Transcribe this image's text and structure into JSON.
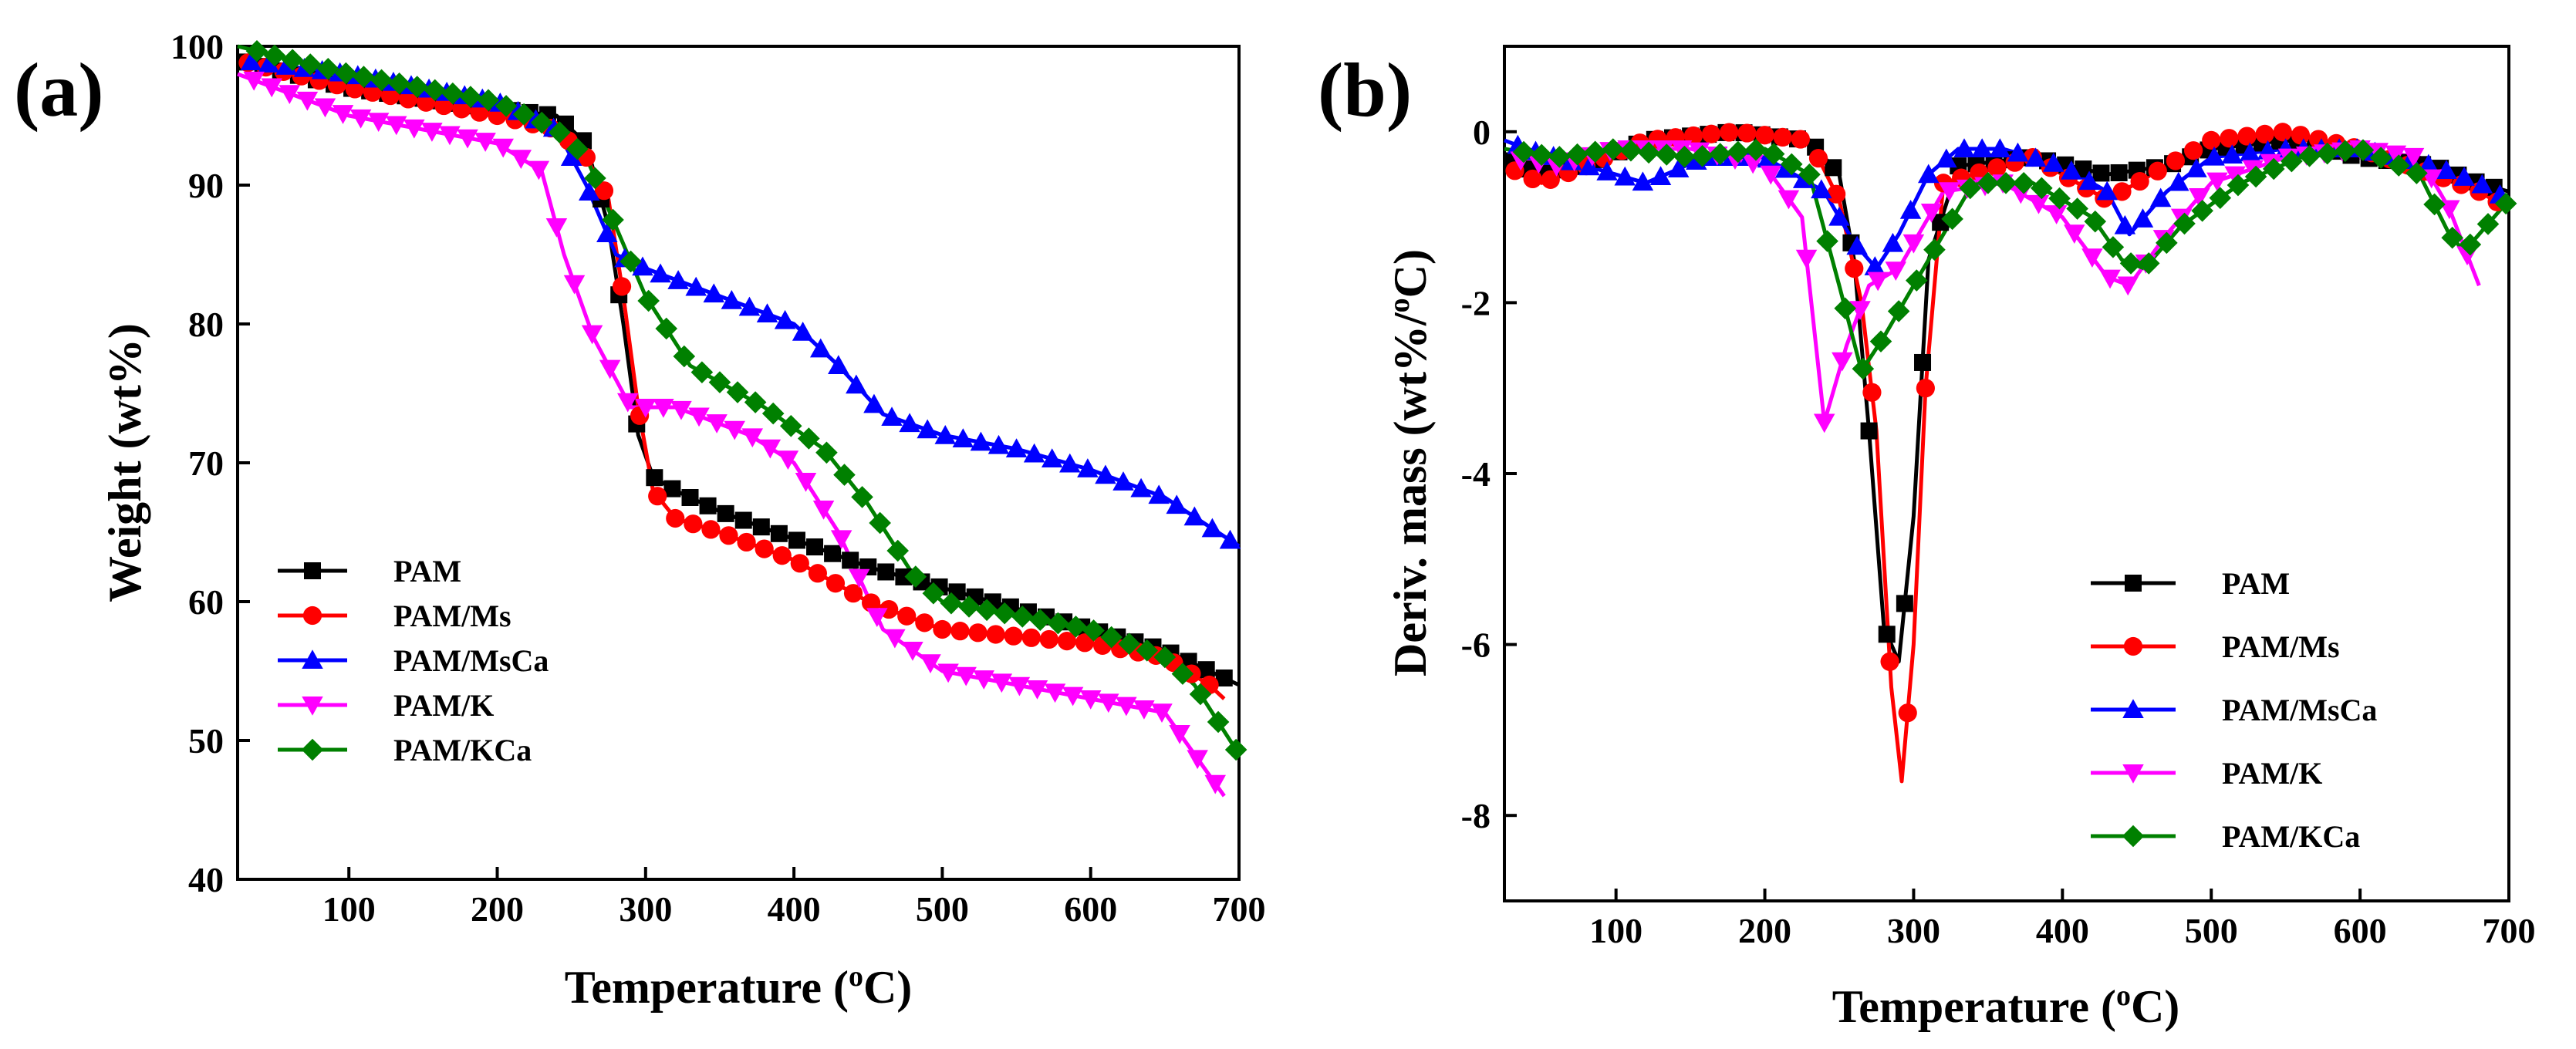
{
  "chart_data": [
    {
      "type": "line",
      "panel_label": "(a)",
      "title": "",
      "xlabel": "Temperature (",
      "xlabel_superscript": "o",
      "xlabel_unit": "C)",
      "ylabel": "Weight (wt%)",
      "xlim": [
        25,
        700
      ],
      "ylim": [
        40,
        100
      ],
      "xticks": [
        100,
        200,
        300,
        400,
        500,
        600,
        700
      ],
      "yticks": [
        40,
        50,
        60,
        70,
        80,
        90,
        100
      ],
      "legend_position": "bottom-left",
      "series": [
        {
          "name": "PAM",
          "color": "#000000",
          "marker": "square",
          "x": [
            25,
            100,
            200,
            240,
            260,
            275,
            285,
            295,
            305,
            320,
            350,
            400,
            450,
            500,
            550,
            600,
            650,
            680,
            700
          ],
          "y": [
            99,
            97,
            95.5,
            95,
            93,
            87,
            80,
            72,
            69,
            68,
            66.5,
            64.5,
            62.5,
            61,
            59.5,
            58,
            56.5,
            55,
            54
          ]
        },
        {
          "name": "PAM/Ms",
          "color": "#ff0000",
          "marker": "circle",
          "x": [
            25,
            100,
            200,
            240,
            260,
            275,
            285,
            295,
            305,
            320,
            350,
            400,
            450,
            500,
            550,
            600,
            650,
            680,
            690
          ],
          "y": [
            99,
            97,
            95,
            94,
            92,
            89,
            82,
            74,
            68,
            66,
            65,
            63,
            60,
            58,
            57.5,
            57,
            56,
            54,
            53
          ]
        },
        {
          "name": "PAM/MsCa",
          "color": "#0000ff",
          "marker": "triangle-up",
          "x": [
            25,
            100,
            200,
            240,
            260,
            280,
            300,
            350,
            400,
            430,
            460,
            500,
            550,
            600,
            650,
            700
          ],
          "y": [
            99,
            98,
            96,
            94,
            90,
            85,
            84,
            82,
            80,
            77,
            73.5,
            72,
            71,
            69.5,
            67.5,
            64
          ]
        },
        {
          "name": "PAM/K",
          "color": "#ff00ff",
          "marker": "triangle-down",
          "x": [
            25,
            100,
            200,
            230,
            245,
            265,
            290,
            320,
            370,
            400,
            430,
            460,
            500,
            550,
            600,
            650,
            670,
            690
          ],
          "y": [
            98,
            95,
            93,
            91,
            85,
            79,
            74,
            74,
            72,
            70,
            65,
            58,
            55,
            54,
            53,
            52,
            49,
            46
          ]
        },
        {
          "name": "PAM/KCa",
          "color": "#008000",
          "marker": "diamond",
          "x": [
            25,
            100,
            200,
            240,
            260,
            280,
            300,
            330,
            380,
            420,
            450,
            480,
            500,
            550,
            600,
            650,
            670,
            700
          ],
          "y": [
            100,
            98,
            96,
            94,
            92,
            87,
            82,
            77,
            74,
            71,
            67,
            62,
            60,
            59,
            58,
            56,
            54,
            49
          ]
        }
      ]
    },
    {
      "type": "line",
      "panel_label": "(b)",
      "title": "",
      "xlabel": "Temperature (",
      "xlabel_superscript": "o",
      "xlabel_unit": "C)",
      "ylabel": "Deriv. mass (wt%/",
      "ylabel_superscript": "o",
      "ylabel_unit": "C)",
      "xlim": [
        25,
        700
      ],
      "ylim": [
        -9,
        1
      ],
      "xticks": [
        100,
        200,
        300,
        400,
        500,
        600,
        700
      ],
      "yticks": [
        -8,
        -6,
        -4,
        -2,
        0
      ],
      "legend_position": "bottom-right",
      "series": [
        {
          "name": "PAM",
          "color": "#000000",
          "marker": "square",
          "x": [
            25,
            50,
            80,
            120,
            180,
            230,
            250,
            260,
            270,
            280,
            290,
            300,
            310,
            330,
            380,
            430,
            470,
            500,
            550,
            600,
            650,
            680,
            700
          ],
          "y": [
            -0.3,
            -0.5,
            -0.4,
            -0.1,
            0,
            -0.1,
            -0.5,
            -1.5,
            -3.5,
            -5.8,
            -6.2,
            -4.5,
            -1.5,
            -0.4,
            -0.3,
            -0.5,
            -0.4,
            -0.2,
            -0.1,
            -0.3,
            -0.4,
            -0.6,
            -0.7
          ]
        },
        {
          "name": "PAM/Ms",
          "color": "#ff0000",
          "marker": "circle",
          "x": [
            25,
            50,
            80,
            120,
            180,
            230,
            250,
            265,
            275,
            285,
            292,
            300,
            308,
            320,
            380,
            430,
            470,
            500,
            550,
            600,
            650,
            680,
            700
          ],
          "y": [
            -0.4,
            -0.6,
            -0.4,
            -0.1,
            0,
            -0.1,
            -0.8,
            -2,
            -3.5,
            -6.5,
            -7.6,
            -6,
            -3,
            -0.6,
            -0.3,
            -0.8,
            -0.4,
            -0.1,
            0,
            -0.2,
            -0.5,
            -0.7,
            -0.9
          ]
        },
        {
          "name": "PAM/MsCa",
          "color": "#0000ff",
          "marker": "triangle-up",
          "x": [
            25,
            40,
            80,
            120,
            160,
            200,
            240,
            260,
            275,
            290,
            310,
            330,
            360,
            400,
            430,
            445,
            470,
            500,
            550,
            600,
            650,
            680,
            700
          ],
          "y": [
            -0.1,
            -0.2,
            -0.4,
            -0.6,
            -0.3,
            -0.3,
            -0.7,
            -1.3,
            -1.6,
            -1.2,
            -0.5,
            -0.2,
            -0.2,
            -0.4,
            -0.7,
            -1.2,
            -0.7,
            -0.3,
            -0.2,
            -0.2,
            -0.4,
            -0.6,
            -0.8
          ]
        },
        {
          "name": "PAM/K",
          "color": "#ff00ff",
          "marker": "triangle-down",
          "x": [
            25,
            60,
            100,
            150,
            200,
            225,
            240,
            255,
            270,
            290,
            320,
            360,
            400,
            430,
            445,
            470,
            500,
            550,
            600,
            640,
            660,
            680
          ],
          "y": [
            -0.3,
            -0.4,
            -0.2,
            -0.2,
            -0.4,
            -1,
            -3.4,
            -2.5,
            -1.8,
            -1.6,
            -0.7,
            -0.6,
            -1,
            -1.7,
            -1.8,
            -1.2,
            -0.6,
            -0.3,
            -0.2,
            -0.3,
            -0.9,
            -1.8
          ]
        },
        {
          "name": "PAM/KCa",
          "color": "#008000",
          "marker": "diamond",
          "x": [
            25,
            60,
            100,
            150,
            200,
            230,
            250,
            265,
            280,
            300,
            320,
            340,
            380,
            420,
            440,
            455,
            480,
            520,
            560,
            600,
            640,
            660,
            670,
            700
          ],
          "y": [
            -0.2,
            -0.3,
            -0.2,
            -0.3,
            -0.2,
            -0.5,
            -1.8,
            -2.8,
            -2.4,
            -1.8,
            -1.2,
            -0.6,
            -0.6,
            -1,
            -1.5,
            -1.6,
            -1.1,
            -0.6,
            -0.3,
            -0.2,
            -0.5,
            -1.2,
            -1.4,
            -0.8
          ]
        }
      ]
    }
  ]
}
